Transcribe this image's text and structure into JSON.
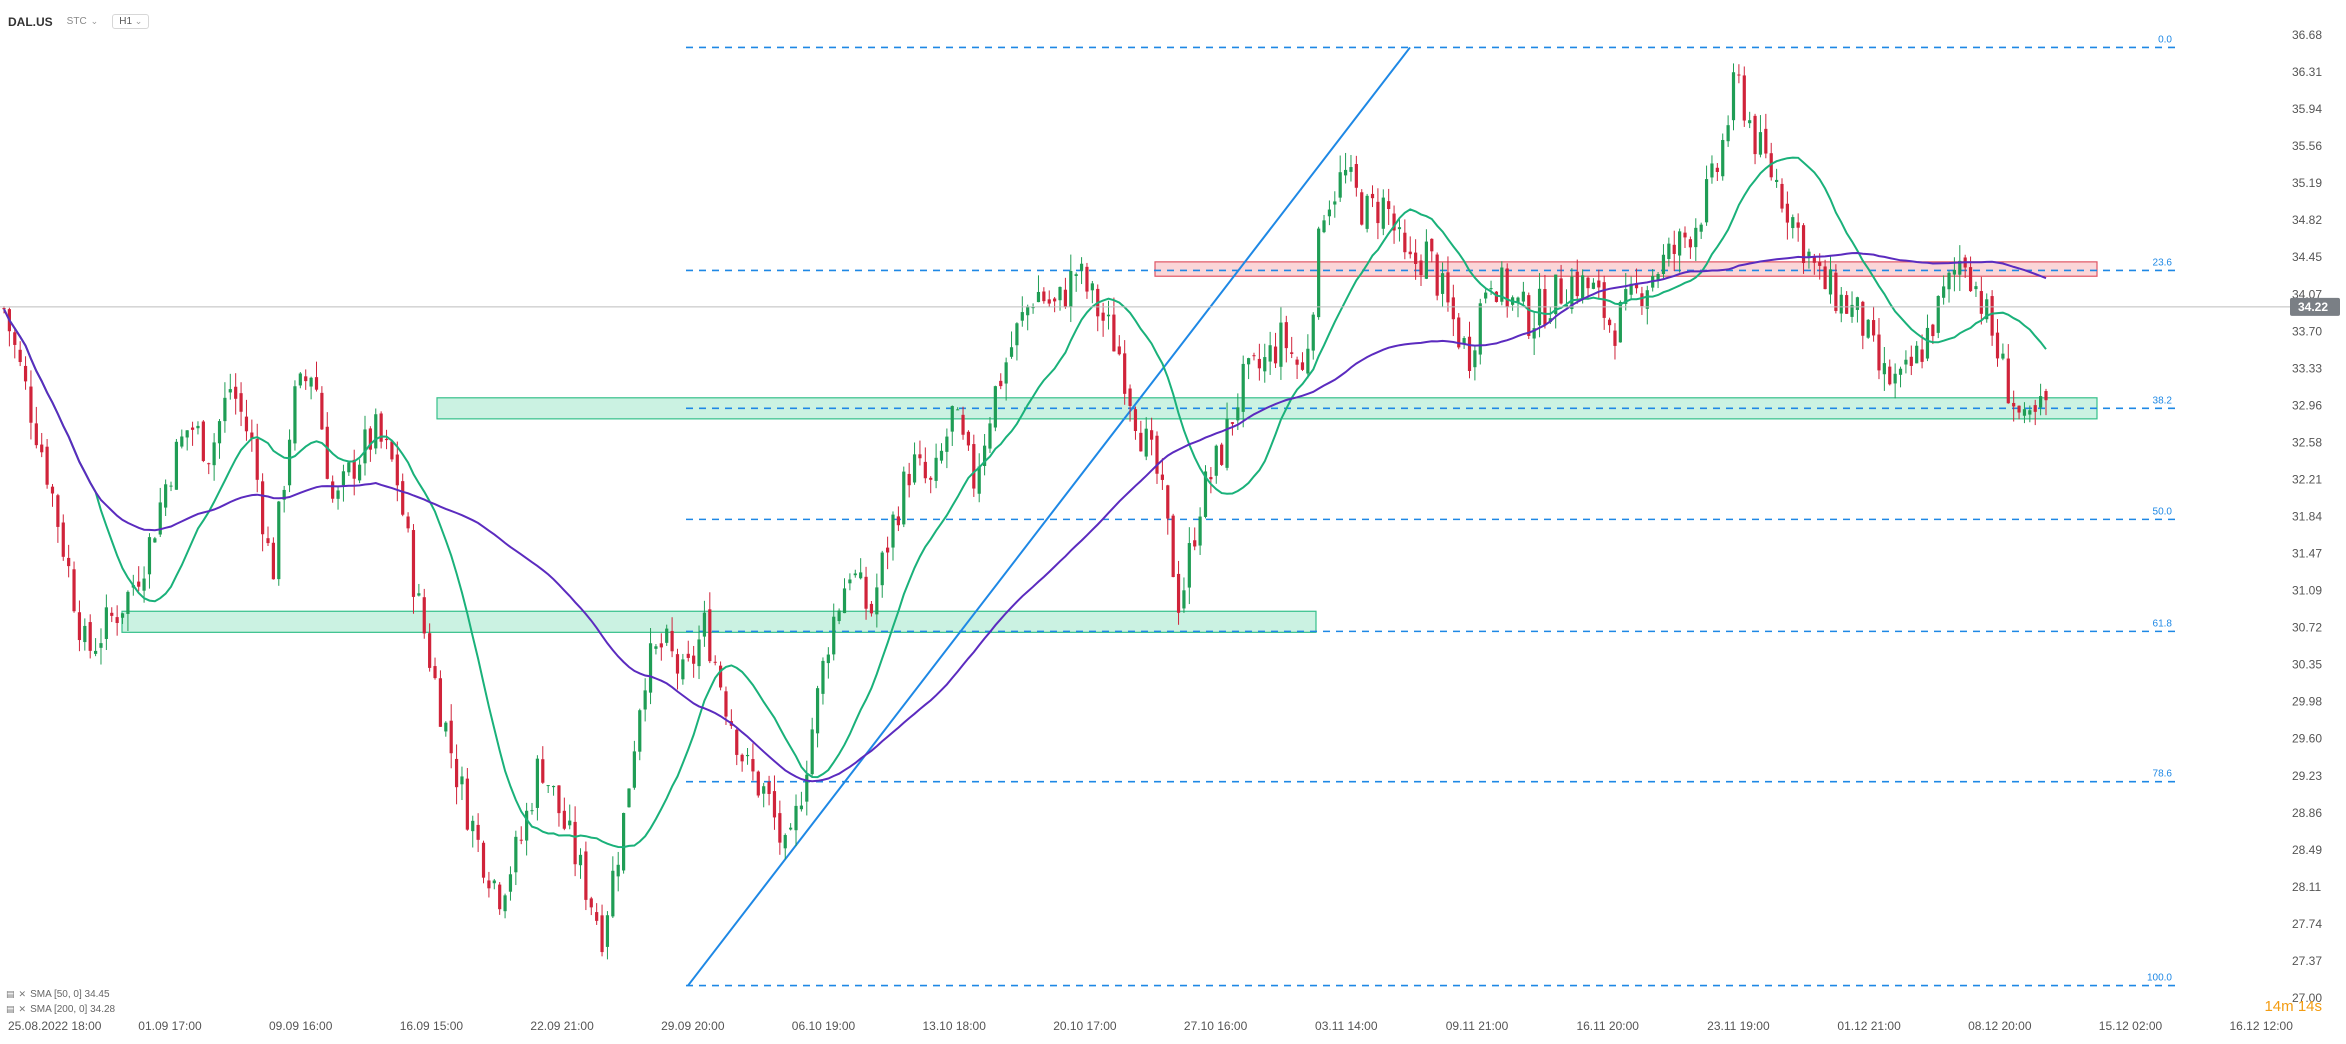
{
  "header": {
    "symbol": "DAL.US",
    "session": "STC",
    "timeframe": "H1"
  },
  "indicators": [
    {
      "label": "SMA [50, 0] 34.45",
      "color": "#1ab17a"
    },
    {
      "label": "SMA [200, 0] 34.28",
      "color": "#5b2bbf"
    }
  ],
  "countdown": {
    "min": "14m",
    "sec": "14s"
  },
  "colors": {
    "bull": "#1f9d55",
    "bear": "#d0233a",
    "sma50": "#1ab17a",
    "sma200": "#5b2bbf",
    "fib": "#1e88e5",
    "trend": "#1e88e5",
    "green_zone_fill": "rgba(46,204,140,0.25)",
    "green_zone_border": "#35c08a",
    "red_zone_fill": "rgba(240,90,100,0.25)",
    "red_zone_border": "#e05563",
    "current_price_bg": "#7a7f85",
    "current_price_line": "#bdbdbd"
  },
  "chart_data": {
    "type": "candlestick",
    "symbol": "DAL.US",
    "timeframe": "H1",
    "y_ticks": [
      "36.68",
      "36.31",
      "35.94",
      "35.56",
      "35.19",
      "34.82",
      "34.45",
      "34.07",
      "33.70",
      "33.33",
      "32.96",
      "32.58",
      "32.21",
      "31.84",
      "31.47",
      "31.09",
      "30.72",
      "30.35",
      "29.98",
      "29.60",
      "29.23",
      "28.86",
      "28.49",
      "28.11",
      "27.74",
      "27.37",
      "27.00"
    ],
    "ylim": [
      27.0,
      37.06
    ],
    "x_ticks": [
      "25.08.2022 18:00",
      "01.09 17:00",
      "09.09 16:00",
      "16.09 15:00",
      "22.09 21:00",
      "29.09 20:00",
      "06.10 19:00",
      "13.10 18:00",
      "20.10 17:00",
      "27.10 16:00",
      "03.11 14:00",
      "09.11 21:00",
      "16.11 20:00",
      "23.11 19:00",
      "01.12 21:00",
      "08.12 20:00",
      "15.12 02:00",
      "16.12 12:00"
    ],
    "current_price": "34.22",
    "fibonacci": [
      {
        "label": "0.0",
        "price": 36.93
      },
      {
        "label": "23.6",
        "price": 34.6
      },
      {
        "label": "38.2",
        "price": 33.16
      },
      {
        "label": "50.0",
        "price": 32.0
      },
      {
        "label": "61.8",
        "price": 30.83
      },
      {
        "label": "78.6",
        "price": 29.26
      },
      {
        "label": "100.0",
        "price": 27.13
      }
    ],
    "zones": [
      {
        "kind": "resistance",
        "color": "red",
        "from": "27.10",
        "to": "15.12",
        "low": 34.54,
        "high": 34.69
      },
      {
        "kind": "support",
        "color": "green",
        "from": "16.09",
        "to": "15.12",
        "low": 33.05,
        "high": 33.27
      },
      {
        "kind": "support",
        "color": "green",
        "from": "29.08",
        "to": "03.11",
        "low": 30.82,
        "high": 31.04
      }
    ],
    "trendline": {
      "from": {
        "t": "29.09 20:00",
        "price": 27.13
      },
      "to": {
        "t": "01.11",
        "price": 36.93
      }
    },
    "sma50_current": 34.45,
    "sma200_current": 34.28,
    "price_path": [
      34.2,
      33.4,
      32.6,
      31.6,
      30.6,
      30.9,
      31.2,
      31.7,
      32.5,
      33.0,
      32.7,
      33.4,
      32.8,
      31.4,
      33.2,
      33.6,
      32.1,
      32.6,
      32.9,
      32.5,
      31.2,
      30.2,
      29.3,
      28.6,
      28.1,
      28.6,
      29.5,
      28.9,
      28.3,
      27.7,
      28.8,
      30.4,
      30.7,
      30.3,
      30.9,
      30.1,
      29.4,
      29.1,
      28.4,
      29.6,
      30.8,
      31.5,
      31.0,
      31.9,
      32.6,
      32.3,
      33.1,
      32.4,
      33.3,
      33.9,
      34.4,
      34.2,
      34.6,
      34.2,
      33.8,
      33.0,
      32.4,
      31.1,
      32.2,
      32.7,
      33.4,
      33.6,
      33.9,
      33.5,
      35.3,
      35.6,
      35.2,
      35.3,
      34.6,
      34.8,
      34.2,
      33.7,
      34.6,
      34.3,
      34.1,
      34.3,
      34.5,
      34.4,
      34.0,
      34.3,
      34.6,
      34.8,
      35.1,
      35.6,
      36.6,
      35.9,
      35.5,
      35.0,
      34.5,
      34.3,
      34.1,
      33.5,
      33.4,
      33.8,
      34.3,
      34.8,
      34.2,
      33.5,
      32.9,
      33.2
    ]
  }
}
